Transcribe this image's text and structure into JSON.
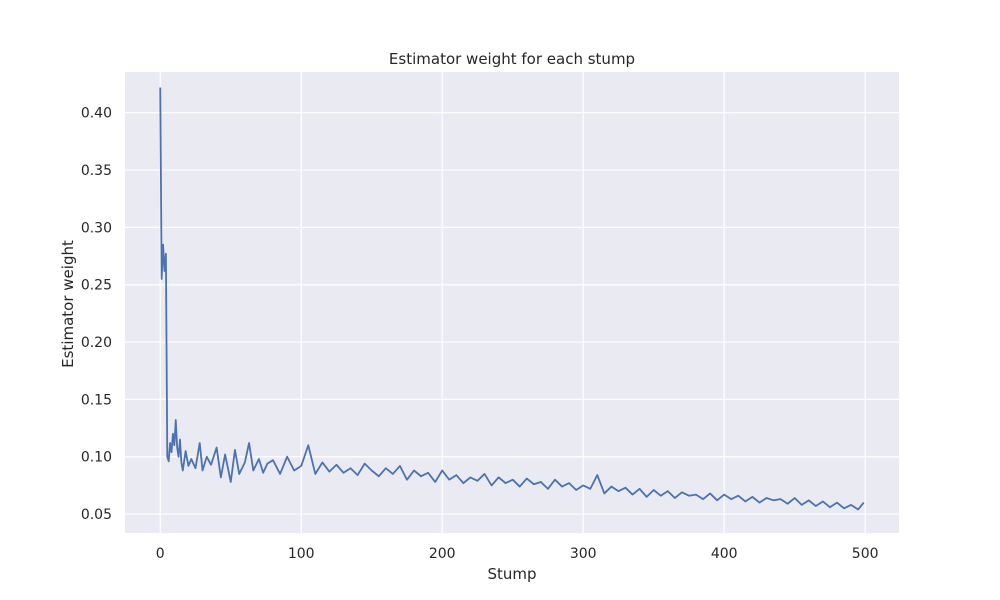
{
  "chart_data": {
    "type": "line",
    "title": "Estimator weight for each stump",
    "xlabel": "Stump",
    "ylabel": "Estimator weight",
    "xlim": [
      -25,
      524
    ],
    "ylim": [
      0.0335,
      0.4355
    ],
    "xticks": [
      0,
      100,
      200,
      300,
      400,
      500
    ],
    "xtick_labels": [
      "0",
      "100",
      "200",
      "300",
      "400",
      "500"
    ],
    "yticks": [
      0.05,
      0.1,
      0.15,
      0.2,
      0.25,
      0.3,
      0.35,
      0.4
    ],
    "ytick_labels": [
      "0.05",
      "0.10",
      "0.15",
      "0.20",
      "0.25",
      "0.30",
      "0.35",
      "0.40"
    ],
    "grid": true,
    "series": [
      {
        "color": "#4c72b0",
        "x": [
          0,
          1,
          2,
          3,
          4,
          5,
          6,
          7,
          8,
          9,
          10,
          11,
          12,
          13,
          14,
          15,
          16,
          18,
          20,
          22,
          25,
          28,
          30,
          33,
          36,
          40,
          43,
          46,
          50,
          53,
          56,
          60,
          63,
          66,
          70,
          73,
          76,
          80,
          85,
          90,
          95,
          100,
          105,
          110,
          115,
          120,
          125,
          130,
          135,
          140,
          145,
          150,
          155,
          160,
          165,
          170,
          175,
          180,
          185,
          190,
          195,
          200,
          205,
          210,
          215,
          220,
          225,
          230,
          235,
          240,
          245,
          250,
          255,
          260,
          265,
          270,
          275,
          280,
          285,
          290,
          295,
          300,
          305,
          310,
          315,
          320,
          325,
          330,
          335,
          340,
          345,
          350,
          355,
          360,
          365,
          370,
          375,
          380,
          385,
          390,
          395,
          400,
          405,
          410,
          415,
          420,
          425,
          430,
          435,
          440,
          445,
          450,
          455,
          460,
          465,
          470,
          475,
          480,
          485,
          490,
          495,
          499
        ],
        "values": [
          0.422,
          0.255,
          0.285,
          0.262,
          0.277,
          0.1,
          0.096,
          0.112,
          0.104,
          0.12,
          0.11,
          0.132,
          0.108,
          0.1,
          0.115,
          0.095,
          0.088,
          0.105,
          0.092,
          0.098,
          0.09,
          0.112,
          0.088,
          0.1,
          0.093,
          0.108,
          0.082,
          0.102,
          0.078,
          0.106,
          0.085,
          0.095,
          0.112,
          0.088,
          0.098,
          0.086,
          0.094,
          0.097,
          0.085,
          0.1,
          0.088,
          0.092,
          0.11,
          0.085,
          0.095,
          0.087,
          0.093,
          0.086,
          0.09,
          0.084,
          0.094,
          0.088,
          0.083,
          0.09,
          0.085,
          0.092,
          0.08,
          0.088,
          0.083,
          0.086,
          0.078,
          0.088,
          0.08,
          0.084,
          0.077,
          0.082,
          0.079,
          0.085,
          0.075,
          0.082,
          0.077,
          0.08,
          0.074,
          0.081,
          0.076,
          0.078,
          0.072,
          0.08,
          0.074,
          0.077,
          0.071,
          0.075,
          0.072,
          0.084,
          0.068,
          0.074,
          0.07,
          0.073,
          0.067,
          0.072,
          0.065,
          0.071,
          0.066,
          0.07,
          0.064,
          0.069,
          0.066,
          0.067,
          0.063,
          0.068,
          0.062,
          0.067,
          0.063,
          0.066,
          0.061,
          0.065,
          0.06,
          0.064,
          0.062,
          0.063,
          0.059,
          0.064,
          0.058,
          0.062,
          0.057,
          0.061,
          0.056,
          0.06,
          0.055,
          0.058,
          0.054,
          0.06
        ]
      }
    ]
  }
}
